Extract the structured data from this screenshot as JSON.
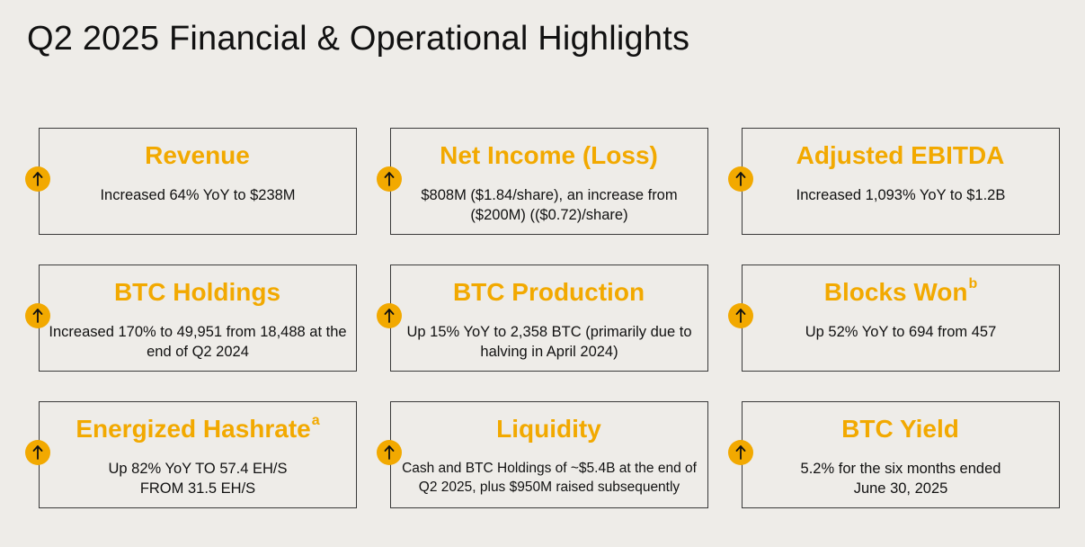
{
  "slide": {
    "title": "Q2 2025 Financial & Operational Highlights"
  },
  "colors": {
    "accent": "#f2a900",
    "text": "#111111",
    "background": "#eeece8",
    "border": "#3a3a3a"
  },
  "cards": [
    {
      "title": "Revenue",
      "superscript": "",
      "description": "Increased 64% YoY to $238M",
      "trend_icon": "up-arrow-icon"
    },
    {
      "title": "Net Income (Loss)",
      "superscript": "",
      "description": "$808M ($1.84/share), an increase from ($200M) (($0.72)/share)",
      "trend_icon": "up-arrow-icon"
    },
    {
      "title": "Adjusted EBITDA",
      "superscript": "",
      "description": "Increased 1,093% YoY to $1.2B",
      "trend_icon": "up-arrow-icon"
    },
    {
      "title": "BTC Holdings",
      "superscript": "",
      "description": "Increased 170% to 49,951 from 18,488 at the end of Q2 2024",
      "trend_icon": "up-arrow-icon"
    },
    {
      "title": "BTC Production",
      "superscript": "",
      "description": "Up 15% YoY to 2,358 BTC (primarily due to halving in April 2024)",
      "trend_icon": "up-arrow-icon"
    },
    {
      "title": "Blocks Won",
      "superscript": "b",
      "description": "Up 52% YoY to 694 from 457",
      "trend_icon": "up-arrow-icon"
    },
    {
      "title": "Energized Hashrate",
      "superscript": "a",
      "description": "Up 82% YoY TO 57.4 EH/S FROM 31.5 EH/S",
      "trend_icon": "up-arrow-icon"
    },
    {
      "title": "Liquidity",
      "superscript": "",
      "description": "Cash and BTC Holdings of ~$5.4B at the end of Q2 2025, plus $950M raised subsequently",
      "trend_icon": "up-arrow-icon"
    },
    {
      "title": "BTC Yield",
      "superscript": "",
      "description": "5.2% for the six months ended June 30, 2025",
      "trend_icon": "up-arrow-icon"
    }
  ]
}
